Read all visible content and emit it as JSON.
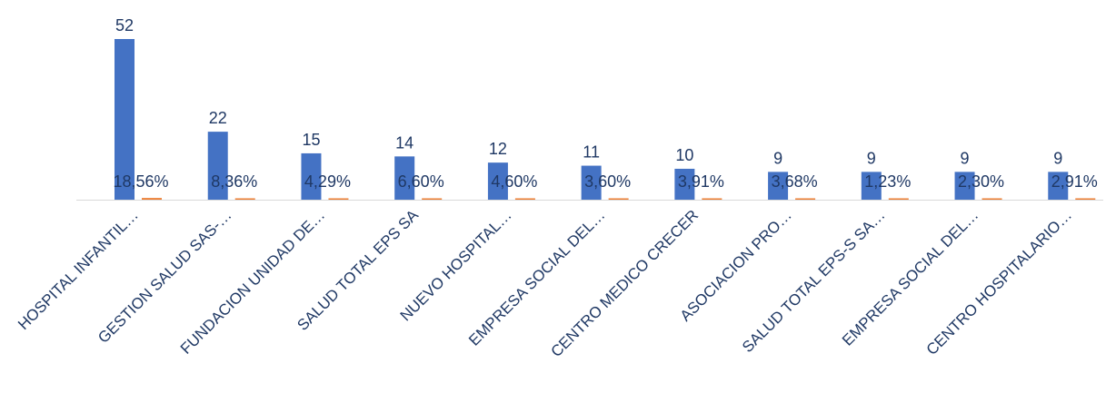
{
  "chart_data": {
    "type": "bar",
    "categories": [
      "HOSPITAL INFANTIL…",
      "GESTION SALUD SAS-…",
      "FUNDACION UNIDAD DE…",
      "SALUD TOTAL EPS SA",
      "NUEVO HOSPITAL…",
      "EMPRESA SOCIAL DEL…",
      "CENTRO MEDICO CRECER",
      "ASOCIACION PRO…",
      "SALUD TOTAL EPS-S SA…",
      "EMPRESA SOCIAL DEL…",
      "CENTRO HOSPITALARIO…"
    ],
    "series": [
      {
        "values": [
          52,
          22,
          15,
          14,
          12,
          11,
          10,
          9,
          9,
          9,
          9
        ],
        "labels": [
          "52",
          "22",
          "15",
          "14",
          "12",
          "11",
          "10",
          "9",
          "9",
          "9",
          "9"
        ],
        "color": "#4472c4"
      },
      {
        "values": [
          0.1856,
          0.0836,
          0.0429,
          0.066,
          0.046,
          0.036,
          0.0391,
          0.0368,
          0.0123,
          0.023,
          0.0291
        ],
        "labels": [
          "18,56%",
          "8,36%",
          "4,29%",
          "6,60%",
          "4,60%",
          "3,60%",
          "3,91%",
          "3,68%",
          "1,23%",
          "2,30%",
          "2,91%"
        ],
        "color": "#ed7d31"
      }
    ],
    "ylim": [
      0,
      52
    ],
    "grid": false,
    "legend": "none"
  }
}
